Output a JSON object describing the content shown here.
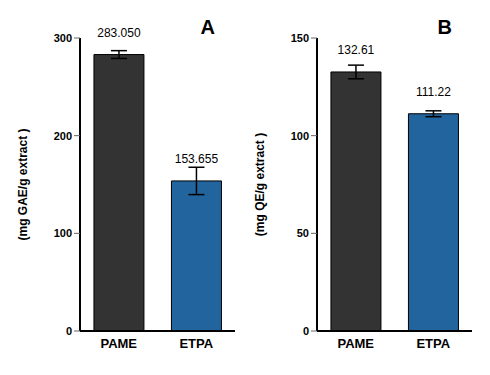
{
  "chart_data": [
    {
      "type": "bar",
      "title": "A",
      "categories": [
        "PAME",
        "ETPA"
      ],
      "values": [
        283.05,
        153.655
      ],
      "value_labels": [
        "283.050",
        "153.655"
      ],
      "errors": [
        4,
        14
      ],
      "colors": [
        "#333333",
        "#22649e"
      ],
      "ylabel": "(mg GAE/g extract )",
      "ylim": [
        0,
        300
      ],
      "yticks": [
        0,
        100,
        200,
        300
      ],
      "data_labels": true
    },
    {
      "type": "bar",
      "title": "B",
      "categories": [
        "PAME",
        "ETPA"
      ],
      "values": [
        132.61,
        111.22
      ],
      "errors": [
        3.5,
        1.5
      ],
      "colors": [
        "#333333",
        "#22649e"
      ],
      "ylabel": "(mg QE/g extract )",
      "ylim": [
        0,
        150
      ],
      "yticks": [
        0,
        50,
        100,
        150
      ],
      "data_labels": true
    }
  ]
}
